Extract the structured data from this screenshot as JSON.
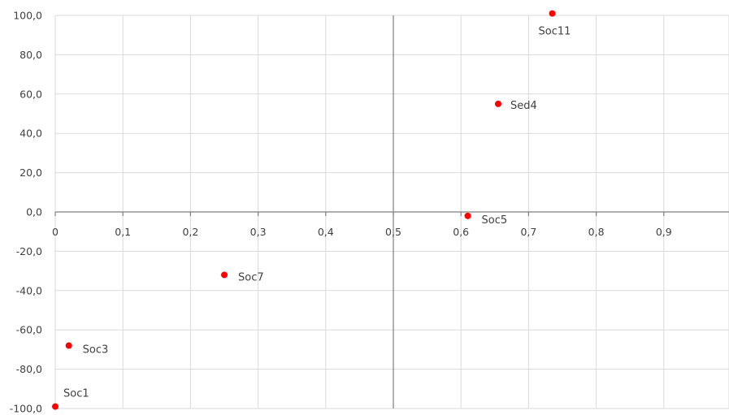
{
  "chart_data": {
    "type": "scatter",
    "title": "",
    "xlabel": "",
    "ylabel": "",
    "xlim": [
      0,
      1
    ],
    "ylim": [
      -100,
      100
    ],
    "x_ticks": [
      "0",
      "0,1",
      "0,2",
      "0,3",
      "0,4",
      "0,5",
      "0,6",
      "0,7",
      "0,8",
      "0,9"
    ],
    "y_ticks": [
      "100,0",
      "80,0",
      "60,0",
      "40,0",
      "20,0",
      "0,0",
      "-20,0",
      "-40,0",
      "-60,0",
      "-80,0",
      "-100,0"
    ],
    "vertical_axis_at_x": 0.5,
    "grid": true,
    "marker_color": "#ff0000",
    "points": [
      {
        "label": "Soc11",
        "x": 0.735,
        "y": 101
      },
      {
        "label": "Sed4",
        "x": 0.655,
        "y": 55
      },
      {
        "label": "Soc5",
        "x": 0.61,
        "y": -2
      },
      {
        "label": "Soc7",
        "x": 0.25,
        "y": -32
      },
      {
        "label": "Soc3",
        "x": 0.02,
        "y": -68
      },
      {
        "label": "Soc1",
        "x": 0.0,
        "y": -99
      }
    ]
  }
}
